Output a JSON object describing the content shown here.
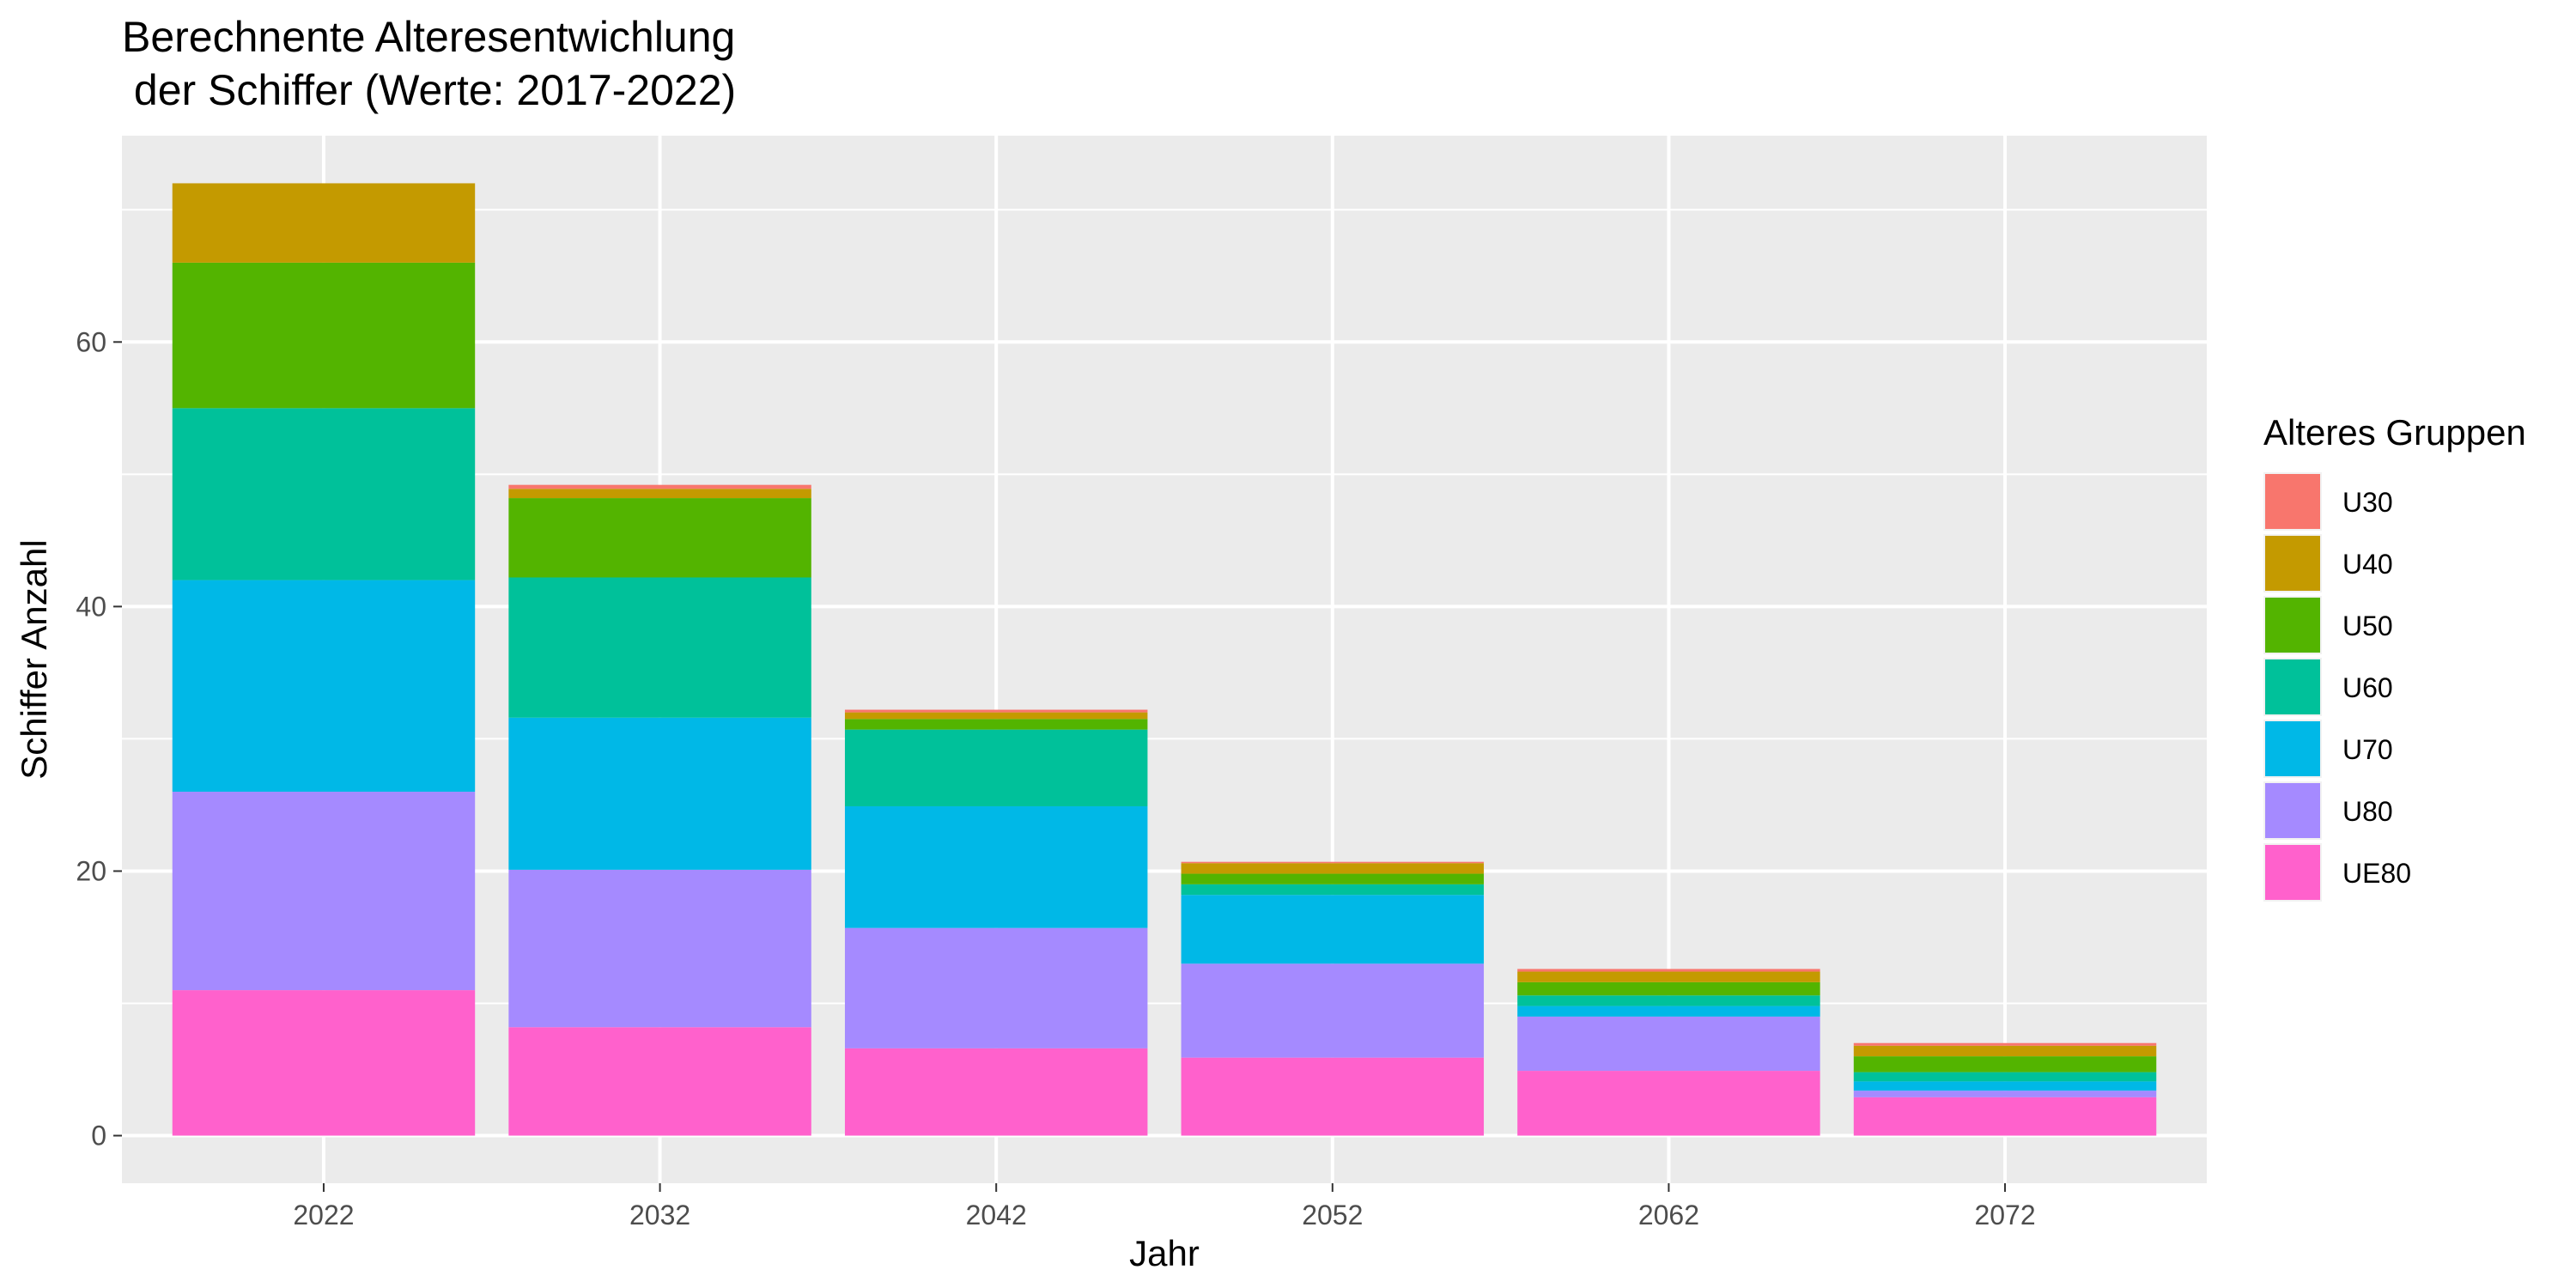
{
  "chart_data": {
    "type": "bar",
    "stacked": true,
    "title_lines": [
      "Berechnente Alteresentwichlung",
      " der Schiffer (Werte: 2017-2022)"
    ],
    "xlabel": "Jahr",
    "ylabel": "Schiffer Anzahl",
    "categories": [
      "2022",
      "2032",
      "2042",
      "2052",
      "2062",
      "2072"
    ],
    "ylim": [
      -3.6,
      75.6
    ],
    "yticks": [
      0,
      20,
      40,
      60
    ],
    "grid": true,
    "legend_title": "Alteres Gruppen",
    "legend_position": "right",
    "series": [
      {
        "name": "UE80",
        "color": "#FF61CC",
        "values": [
          11,
          8.2,
          6.6,
          5.9,
          4.9,
          2.9
        ]
      },
      {
        "name": "U80",
        "color": "#A58AFF",
        "values": [
          15,
          11.9,
          9.1,
          7.1,
          4.1,
          0.5
        ]
      },
      {
        "name": "U70",
        "color": "#00B8E7",
        "values": [
          16,
          11.5,
          9.2,
          5.2,
          0.8,
          0.7
        ]
      },
      {
        "name": "U60",
        "color": "#00C19A",
        "values": [
          13,
          10.6,
          5.8,
          0.8,
          0.8,
          0.7
        ]
      },
      {
        "name": "U50",
        "color": "#53B400",
        "values": [
          11,
          6.0,
          0.8,
          0.8,
          1.0,
          1.2
        ]
      },
      {
        "name": "U40",
        "color": "#C49A00",
        "values": [
          6,
          0.7,
          0.5,
          0.8,
          0.8,
          0.8
        ]
      },
      {
        "name": "U30",
        "color": "#F8766D",
        "values": [
          0,
          0.3,
          0.2,
          0.1,
          0.2,
          0.2
        ]
      }
    ],
    "legend_order": [
      "U30",
      "U40",
      "U50",
      "U60",
      "U70",
      "U80",
      "UE80"
    ]
  }
}
